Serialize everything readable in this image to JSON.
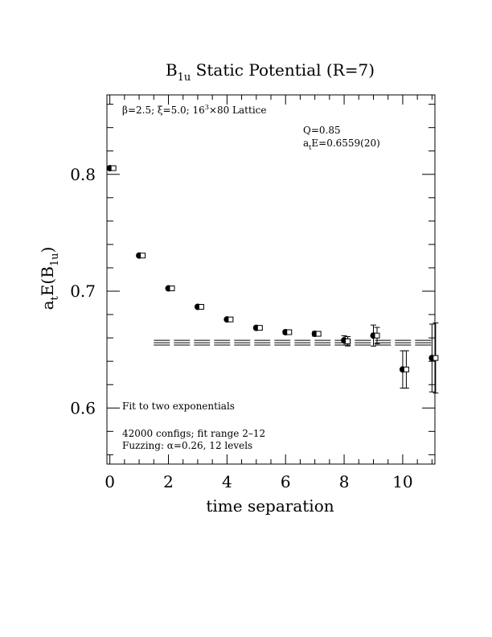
{
  "chart_data": {
    "type": "scatter",
    "title": {
      "main": "B",
      "sub": "1u",
      "rest": " Static Potential (R=7)"
    },
    "xlabel": "time separation",
    "ylabel": {
      "a": "a",
      "a_sub": "t",
      "mid": "E(B",
      "mid_sub": "1u",
      "end": ")"
    },
    "xlim": [
      -0.1,
      11.1
    ],
    "ylim": [
      0.552,
      0.868
    ],
    "xticks": [
      0,
      2,
      4,
      6,
      8,
      10
    ],
    "xtick_labels": [
      "0",
      "2",
      "4",
      "6",
      "8",
      "10"
    ],
    "yticks": [
      0.6,
      0.7,
      0.8
    ],
    "ytick_labels": [
      "0.6",
      "0.7",
      "0.8"
    ],
    "grid": false,
    "lattice_info": {
      "beta": "β=2.5; ξ=5.0; 16",
      "sup": "3",
      "rest": "×80 Lattice"
    },
    "fit_q": "Q=0.85",
    "fit_energy": {
      "a": "a",
      "sub": "t",
      "rest": "E=0.6559(20)"
    },
    "fit_description": "Fit to two exponentials",
    "configs_text": "42000 configs; fit range 2–12",
    "fuzzing_text": "Fuzzing: α=0.26, 12 levels",
    "fit": {
      "value": 0.6559,
      "error": 0.002,
      "t_start": 1.5,
      "t_end": 11.1
    },
    "series": [
      {
        "marker": "filled-circle",
        "points": [
          {
            "t": 0,
            "y": 0.8053,
            "err": 0.0008
          },
          {
            "t": 1,
            "y": 0.7305,
            "err": 0.0008
          },
          {
            "t": 2,
            "y": 0.7024,
            "err": 0.0008
          },
          {
            "t": 3,
            "y": 0.6866,
            "err": 0.0009
          },
          {
            "t": 4,
            "y": 0.6758,
            "err": 0.001
          },
          {
            "t": 5,
            "y": 0.6686,
            "err": 0.0012
          },
          {
            "t": 6,
            "y": 0.6649,
            "err": 0.0015
          },
          {
            "t": 7,
            "y": 0.6635,
            "err": 0.002
          },
          {
            "t": 8,
            "y": 0.6579,
            "err": 0.004
          },
          {
            "t": 9,
            "y": 0.662,
            "err": 0.009
          },
          {
            "t": 10,
            "y": 0.633,
            "err": 0.016
          },
          {
            "t": 11,
            "y": 0.6428,
            "err": 0.029
          }
        ]
      },
      {
        "marker": "open-square",
        "points": [
          {
            "t": 0,
            "y": 0.8053,
            "err": 0.0008
          },
          {
            "t": 1,
            "y": 0.7305,
            "err": 0.0008
          },
          {
            "t": 2,
            "y": 0.7024,
            "err": 0.0008
          },
          {
            "t": 3,
            "y": 0.6866,
            "err": 0.0009
          },
          {
            "t": 4,
            "y": 0.6758,
            "err": 0.001
          },
          {
            "t": 5,
            "y": 0.6686,
            "err": 0.0012
          },
          {
            "t": 6,
            "y": 0.6649,
            "err": 0.0015
          },
          {
            "t": 7,
            "y": 0.6635,
            "err": 0.002
          },
          {
            "t": 8,
            "y": 0.6571,
            "err": 0.004
          },
          {
            "t": 9,
            "y": 0.662,
            "err": 0.007
          },
          {
            "t": 10,
            "y": 0.633,
            "err": 0.016
          },
          {
            "t": 11,
            "y": 0.6428,
            "err": 0.03
          }
        ]
      }
    ]
  }
}
